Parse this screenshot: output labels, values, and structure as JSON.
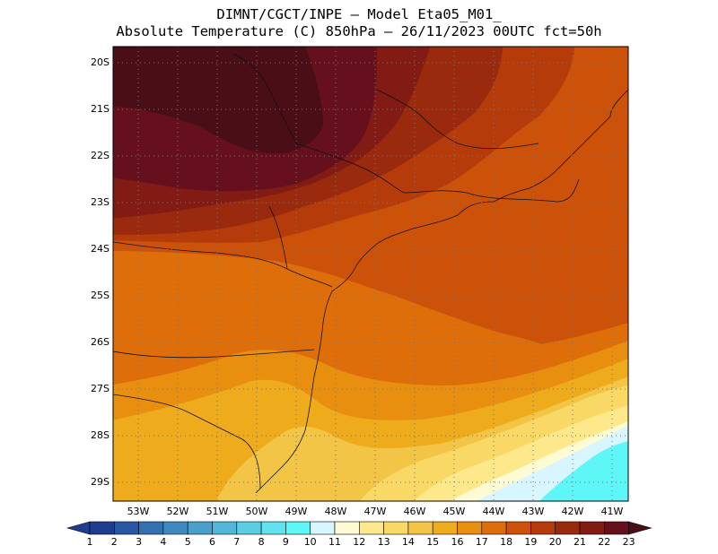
{
  "header": {
    "line1": "DIMNT/CGCT/INPE –  Model Eta05_M01_",
    "line2": "Absolute Temperature (C) 850hPa –  26/11/2023 00UTC fct=50h"
  },
  "axes": {
    "lat_labels": [
      "20S",
      "21S",
      "22S",
      "23S",
      "24S",
      "25S",
      "26S",
      "27S",
      "28S",
      "29S"
    ],
    "lon_labels": [
      "53W",
      "52W",
      "51W",
      "50W",
      "49W",
      "48W",
      "47W",
      "46W",
      "45W",
      "44W",
      "43W",
      "42W",
      "41W"
    ]
  },
  "colorbar": {
    "labels": [
      "1",
      "2",
      "3",
      "4",
      "5",
      "6",
      "7",
      "8",
      "9",
      "10",
      "11",
      "12",
      "13",
      "14",
      "15",
      "16",
      "17",
      "18",
      "19",
      "20",
      "21",
      "22",
      "23"
    ],
    "colors": [
      "#1f3c8f",
      "#2a57a3",
      "#3471b1",
      "#3f89c0",
      "#4aa0cc",
      "#52b8d9",
      "#5acfe4",
      "#61e3ef",
      "#5ef6f6",
      "#d8f6ff",
      "#fdfbd4",
      "#fde98c",
      "#fad866",
      "#f2c547",
      "#eeac1d",
      "#e88f10",
      "#de6e0a",
      "#cd5209",
      "#b53c0a",
      "#9a2a0d",
      "#811b14",
      "#67101d",
      "#4a0e16"
    ]
  },
  "map": {
    "zones": [
      {
        "name": "zone-22-23",
        "color": "#4a0e16"
      },
      {
        "name": "zone-21-22",
        "color": "#67101d"
      },
      {
        "name": "zone-20-21",
        "color": "#811b14"
      },
      {
        "name": "zone-19-20",
        "color": "#9a2a0d"
      },
      {
        "name": "zone-18-19",
        "color": "#b53c0a"
      },
      {
        "name": "zone-17-18",
        "color": "#cd5209"
      },
      {
        "name": "zone-16-17",
        "color": "#de6e0a"
      },
      {
        "name": "zone-15-16",
        "color": "#e88f10"
      },
      {
        "name": "zone-14-15",
        "color": "#eeac1d"
      },
      {
        "name": "zone-13-14",
        "color": "#f2c547"
      },
      {
        "name": "zone-12-13",
        "color": "#fad866"
      },
      {
        "name": "zone-11-12",
        "color": "#fde98c"
      },
      {
        "name": "zone-10-11",
        "color": "#fdfbd4"
      },
      {
        "name": "zone-9-10",
        "color": "#d8f6ff"
      },
      {
        "name": "zone-8-9",
        "color": "#5ef6f6"
      }
    ]
  }
}
